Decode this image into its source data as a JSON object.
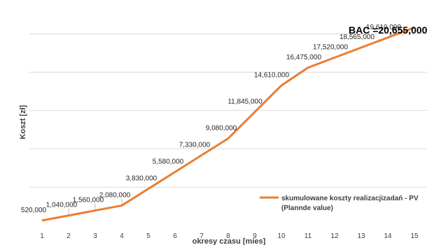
{
  "chart_data": {
    "type": "line",
    "title": "",
    "xlabel": "okresy czasu [mies]",
    "ylabel": "Koszt [zł]",
    "x": [
      1,
      2,
      3,
      4,
      5,
      6,
      7,
      8,
      9,
      10,
      11,
      12,
      13,
      14,
      15
    ],
    "ylim": [
      0,
      22000000
    ],
    "grid": true,
    "legend_position": "bottom-right",
    "series": [
      {
        "name": "skumulowane koszty realizacjizadań - PV (Plannde value)",
        "color": "#ED7D31",
        "values": [
          520000,
          1040000,
          1560000,
          2080000,
          3830000,
          5580000,
          7330000,
          9080000,
          11845000,
          14610000,
          16475000,
          17520000,
          18565000,
          19610000,
          20655000
        ]
      }
    ],
    "data_labels": [
      "520,000",
      "1,040,000",
      "1,560,000",
      "2,080,000",
      "3,830,000",
      "5,580,000",
      "7,330,000",
      "9,080,000",
      "11,845,000",
      "14,610,000",
      "16,475,000",
      "17,520,000",
      "18,565,000",
      "19,610,000"
    ],
    "annotation": "BAC =20,655,000",
    "legend": {
      "line1": "skumulowane koszty realizacjizadań - PV",
      "line2": "(Plannde value)"
    }
  }
}
